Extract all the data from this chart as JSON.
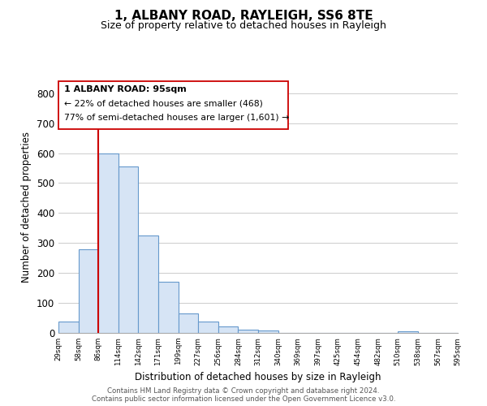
{
  "title": "1, ALBANY ROAD, RAYLEIGH, SS6 8TE",
  "subtitle": "Size of property relative to detached houses in Rayleigh",
  "xlabel": "Distribution of detached houses by size in Rayleigh",
  "ylabel": "Number of detached properties",
  "bar_values": [
    38,
    280,
    600,
    555,
    325,
    170,
    65,
    38,
    22,
    12,
    8,
    0,
    0,
    0,
    0,
    0,
    0,
    5,
    0,
    0
  ],
  "bar_labels": [
    "29sqm",
    "58sqm",
    "86sqm",
    "114sqm",
    "142sqm",
    "171sqm",
    "199sqm",
    "227sqm",
    "256sqm",
    "284sqm",
    "312sqm",
    "340sqm",
    "369sqm",
    "397sqm",
    "425sqm",
    "454sqm",
    "482sqm",
    "510sqm",
    "538sqm",
    "567sqm",
    "595sqm"
  ],
  "bar_color": "#d6e4f5",
  "bar_edge_color": "#6699cc",
  "vline_x": 1.5,
  "vline_color": "#cc0000",
  "ann_line1": "1 ALBANY ROAD: 95sqm",
  "ann_line2": "← 22% of detached houses are smaller (468)",
  "ann_line3": "77% of semi-detached houses are larger (1,601) →",
  "ylim": [
    0,
    840
  ],
  "yticks": [
    0,
    100,
    200,
    300,
    400,
    500,
    600,
    700,
    800
  ],
  "footer_line1": "Contains HM Land Registry data © Crown copyright and database right 2024.",
  "footer_line2": "Contains public sector information licensed under the Open Government Licence v3.0.",
  "background_color": "#ffffff",
  "grid_color": "#cccccc"
}
